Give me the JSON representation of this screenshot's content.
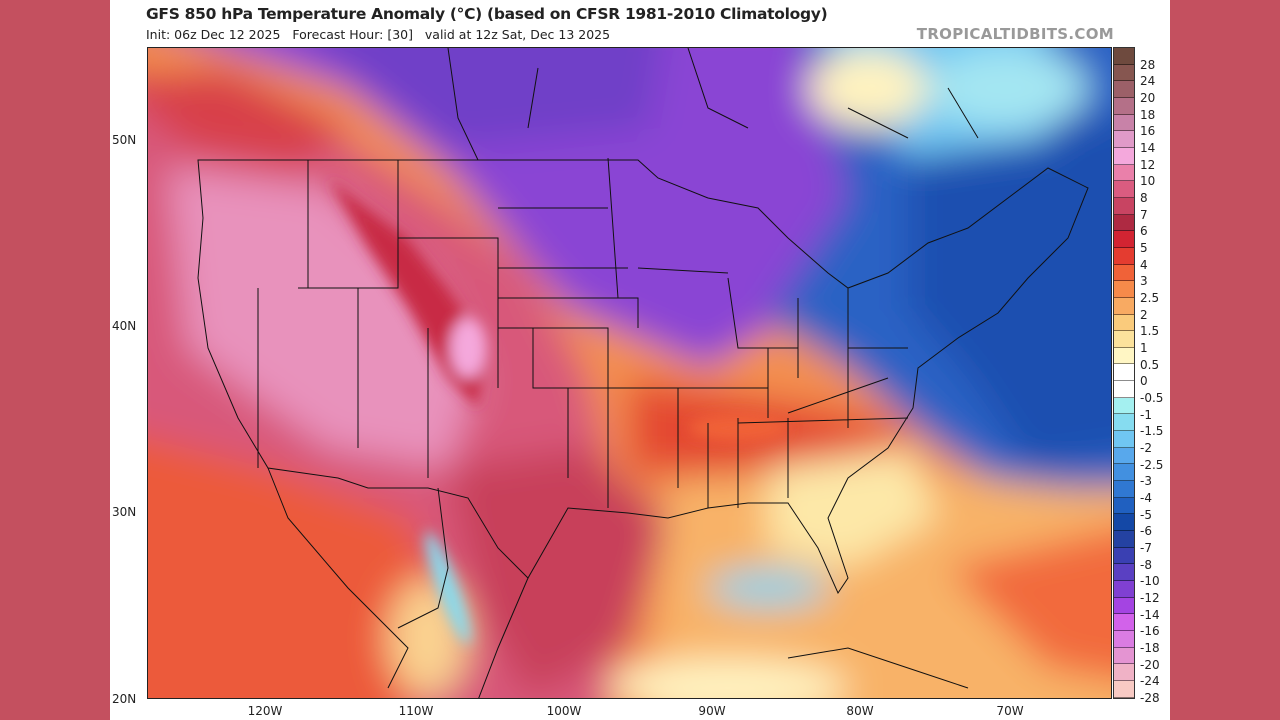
{
  "header": {
    "title": "GFS 850 hPa Temperature Anomaly (°C) (based on CFSR 1981-2010 Climatology)",
    "subtitle": "Init: 06z Dec 12 2025   Forecast Hour: [30]   valid at 12z Sat, Dec 13 2025",
    "brand": "TROPICALTIDBITS.COM"
  },
  "map": {
    "latitude_labels": [
      "50N",
      "40N",
      "30N",
      "20N"
    ],
    "longitude_labels": [
      "120W",
      "110W",
      "100W",
      "90W",
      "80W",
      "70W"
    ]
  },
  "colorbar": {
    "labels": [
      "28",
      "24",
      "20",
      "18",
      "16",
      "14",
      "12",
      "10",
      "8",
      "7",
      "6",
      "5",
      "4",
      "3",
      "2.5",
      "2",
      "1.5",
      "1",
      "0.5",
      "0",
      "-0.5",
      "-1",
      "-1.5",
      "-2",
      "-2.5",
      "-3",
      "-4",
      "-5",
      "-6",
      "-7",
      "-8",
      "-10",
      "-12",
      "-14",
      "-16",
      "-18",
      "-20",
      "-24",
      "-28"
    ],
    "colors": [
      "#6e4a3e",
      "#865650",
      "#9c6068",
      "#b47088",
      "#c882a8",
      "#e09ac8",
      "#f4a8dc",
      "#ea80aa",
      "#da5c80",
      "#c84462",
      "#ae2a42",
      "#d22432",
      "#e43c30",
      "#f06238",
      "#f68a4a",
      "#f8aa62",
      "#facb7c",
      "#fce29c",
      "#fff6c4",
      "#ffffff",
      "#ffffff",
      "#a4f0f0",
      "#86dcf0",
      "#70c6f2",
      "#58a8ec",
      "#4290e0",
      "#3078d2",
      "#2060c0",
      "#1448a6",
      "#2442a2",
      "#3a40b2",
      "#5a40c2",
      "#8040d2",
      "#a444e2",
      "#d262ea",
      "#da7ce2",
      "#e494d2",
      "#f0b2c6",
      "#f8cac4"
    ]
  }
}
